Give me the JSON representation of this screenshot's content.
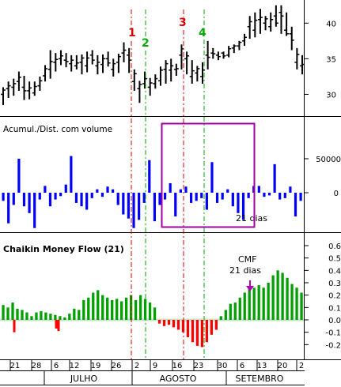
{
  "chart_data": [
    {
      "panel": "price",
      "type": "ohlc",
      "yticks": [
        30,
        35,
        40
      ],
      "ylim": [
        27.5,
        42.8
      ],
      "lows": [
        28.5,
        29.5,
        29.8,
        30.5,
        29.2,
        29.3,
        29.8,
        30.5,
        31.8,
        32.2,
        33.2,
        34.1,
        33.8,
        33.2,
        33.5,
        32.8,
        33.1,
        34.2,
        32.8,
        33.0,
        33.9,
        32.5,
        33.0,
        34.5,
        33.0,
        30.5,
        28.8,
        30.8,
        29.8,
        30.8,
        31.2,
        31.5,
        31.8,
        32.6,
        33.5,
        32.8,
        31.5,
        31.8,
        31.5,
        33.5,
        35.0,
        34.8,
        35.0,
        35.2,
        35.8,
        36.2,
        36.8,
        37.8,
        38.0,
        38.5,
        39.0,
        38.8,
        39.5,
        38.5,
        38.2,
        36.2,
        33.5,
        32.8
      ],
      "highs": [
        31.0,
        31.8,
        32.2,
        33.2,
        32.6,
        31.8,
        31.8,
        32.5,
        34.1,
        36.2,
        35.8,
        36.2,
        35.8,
        35.5,
        35.5,
        35.6,
        36.0,
        36.2,
        35.5,
        35.6,
        36.0,
        35.0,
        35.7,
        37.3,
        36.5,
        33.5,
        31.9,
        33.2,
        32.3,
        32.8,
        33.9,
        34.8,
        35.0,
        34.3,
        37.0,
        36.0,
        34.8,
        34.0,
        34.5,
        37.5,
        36.5,
        36.0,
        36.0,
        36.8,
        37.0,
        37.5,
        38.5,
        41.0,
        41.5,
        42.0,
        41.0,
        41.5,
        42.5,
        42.5,
        41.5,
        39.5,
        36.5,
        35.5
      ],
      "opens": [
        30.0,
        30.8,
        31.0,
        31.8,
        31.0,
        30.5,
        30.2,
        31.2,
        32.6,
        33.5,
        34.5,
        35.0,
        34.8,
        34.3,
        34.0,
        34.5,
        34.0,
        35.5,
        34.0,
        34.2,
        35.0,
        33.5,
        34.5,
        35.8,
        35.5,
        31.8,
        30.8,
        31.5,
        31.0,
        31.5,
        31.9,
        33.5,
        33.4,
        33.5,
        35.5,
        35.0,
        32.5,
        33.0,
        32.5,
        35.5,
        35.8,
        35.5,
        35.8,
        35.5,
        36.5,
        36.8,
        37.5,
        39.5,
        39.0,
        40.5,
        40.0,
        39.5,
        41.0,
        41.5,
        39.0,
        38.5,
        34.5,
        34.0
      ],
      "closes": [
        30.6,
        31.2,
        31.5,
        32.4,
        30.5,
        30.9,
        31.1,
        31.9,
        33.6,
        34.6,
        34.9,
        35.4,
        34.6,
        34.8,
        34.4,
        35.1,
        35.1,
        34.8,
        34.5,
        35.0,
        34.4,
        34.3,
        35.3,
        36.2,
        34.8,
        32.9,
        31.4,
        32.2,
        31.6,
        32.2,
        33.4,
        34.3,
        34.0,
        33.6,
        36.4,
        35.4,
        33.3,
        33.6,
        33.4,
        35.2,
        35.7,
        35.3,
        35.4,
        36.4,
        36.8,
        37.3,
        38.0,
        40.2,
        40.4,
        40.8,
        40.6,
        40.5,
        40.0,
        41.0,
        38.5,
        37.6,
        35.6,
        34.2
      ]
    },
    {
      "panel": "accum-dist",
      "type": "bar",
      "label": "Acumul./Dist. com volume",
      "yticks": [
        50000,
        0
      ],
      "ylim": [
        -85000,
        100000
      ],
      "values": [
        -12000,
        -45000,
        -18000,
        50000,
        -20000,
        -30000,
        -52000,
        -10000,
        10000,
        -20000,
        -10000,
        -5000,
        12000,
        54000,
        -15000,
        -20000,
        -25000,
        -8000,
        5000,
        -6000,
        9000,
        5000,
        -18000,
        -32000,
        -38000,
        -52000,
        -40000,
        -15000,
        48000,
        -42000,
        -18000,
        -10000,
        14000,
        -35000,
        5000,
        9000,
        -15000,
        -12000,
        -8000,
        -25000,
        45000,
        -15000,
        -10000,
        5000,
        -20000,
        -30000,
        -40000,
        -8000,
        10000,
        10000,
        -6000,
        -4000,
        42000,
        -10000,
        -8000,
        9000,
        -35000,
        -12000
      ]
    },
    {
      "panel": "cmf",
      "type": "bar",
      "title": "Chaikin Money Flow (21)",
      "yticks": [
        0.6,
        0.5,
        0.4,
        0.3,
        0.2,
        0.1,
        0.0,
        -0.1,
        -0.2
      ],
      "ylim": [
        -0.29,
        0.62
      ],
      "values": [
        0.12,
        0.1,
        0.14,
        0.09,
        0.08,
        0.06,
        0.03,
        0.06,
        0.07,
        0.06,
        0.05,
        0.04,
        0.03,
        0.02,
        0.05,
        0.09,
        0.08,
        0.16,
        0.18,
        0.22,
        0.24,
        0.2,
        0.18,
        0.16,
        0.17,
        0.15,
        0.18,
        0.2,
        0.16,
        0.2,
        0.17,
        0.14,
        0.1,
        -0.03,
        -0.05,
        -0.04,
        -0.06,
        -0.08,
        -0.1,
        -0.14,
        -0.18,
        -0.21,
        -0.22,
        -0.18,
        -0.12,
        -0.08,
        0.03,
        0.08,
        0.13,
        0.14,
        0.18,
        0.22,
        0.27,
        0.26,
        0.28,
        0.26,
        0.3,
        0.36,
        0.4,
        0.38,
        0.34,
        0.29,
        0.26,
        0.22
      ],
      "leading_negative": [
        -0.1,
        -0.07,
        -0.09
      ]
    }
  ],
  "annotations": {
    "accum_box_label": "21 dias",
    "cmf_note_line1": "CMF",
    "cmf_note_line2": "21 dias",
    "markers": [
      "1",
      "2",
      "3",
      "4"
    ]
  },
  "x_axis": {
    "day_ticks": [
      "21",
      "28",
      "6",
      "12",
      "19",
      "26",
      "2",
      "9",
      "16",
      "23",
      "30",
      "6",
      "13",
      "20",
      "2"
    ],
    "months": [
      "JULHO",
      "AGOSTO",
      "SETEMBRO"
    ]
  },
  "colors": {
    "price": "#000000",
    "accum_bars": "#0000ff",
    "cmf_positive": "#00a000",
    "cmf_negative": "#ff0000",
    "marker_red": "#dd0000",
    "marker_green": "#00aa00",
    "box": "#a000a0",
    "arrow": "#b000b0",
    "zero_band": "#c8e6c8"
  }
}
